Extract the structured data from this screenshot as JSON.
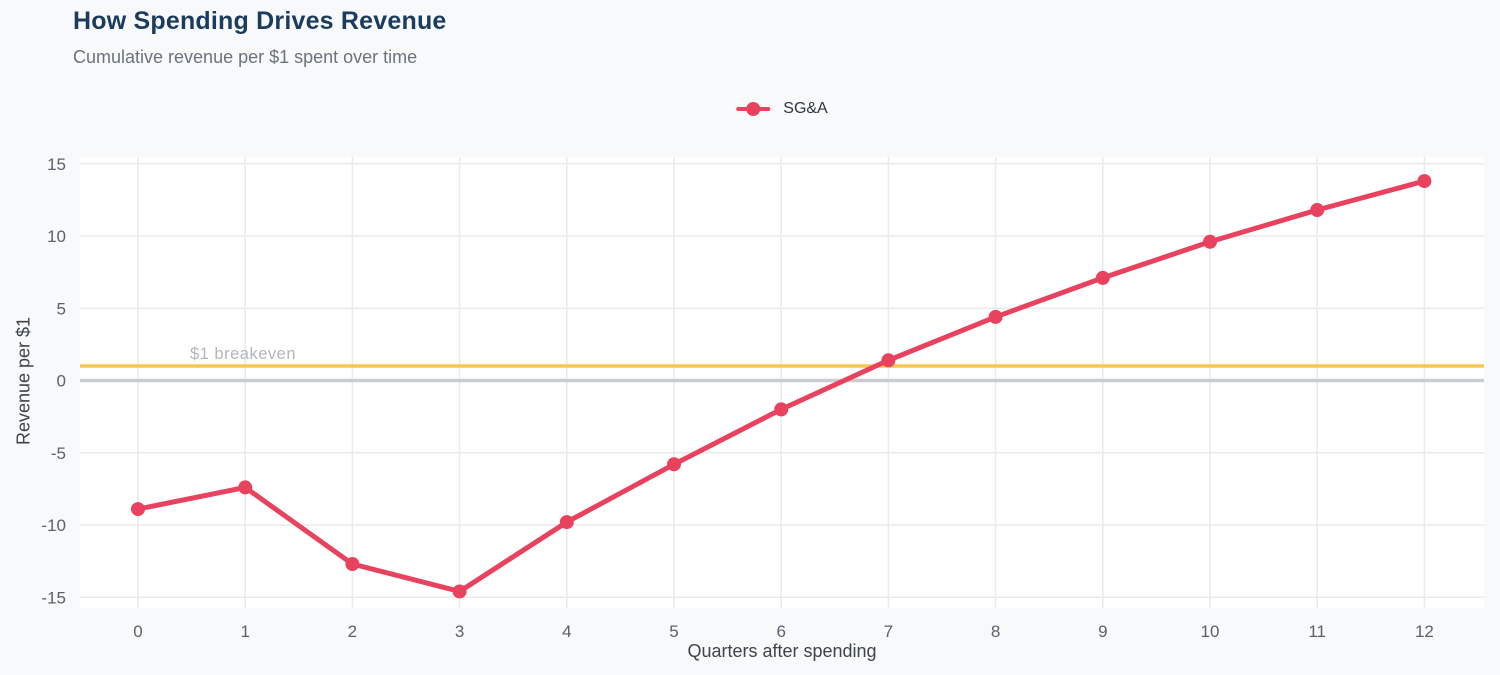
{
  "header": {
    "title": "How Spending Drives Revenue",
    "subtitle": "Cumulative revenue per $1 spent over time"
  },
  "legend": {
    "series_label": "SG&A"
  },
  "chart_data": {
    "type": "line",
    "title": "How Spending Drives Revenue",
    "subtitle": "Cumulative revenue per $1 spent over time",
    "xlabel": "Quarters after spending",
    "ylabel": "Revenue per $1",
    "x": [
      0,
      1,
      2,
      3,
      4,
      5,
      6,
      7,
      8,
      9,
      10,
      11,
      12
    ],
    "xticks": [
      0,
      1,
      2,
      3,
      4,
      5,
      6,
      7,
      8,
      9,
      10,
      11,
      12
    ],
    "yticks": [
      -15,
      -10,
      -5,
      0,
      5,
      10,
      15
    ],
    "xlim": [
      -0.54,
      12.56
    ],
    "ylim": [
      -15.7,
      15.5
    ],
    "grid": true,
    "legend_position": "top-center",
    "series": [
      {
        "name": "SG&A",
        "color": "#e8425f",
        "values": [
          -8.9,
          -7.4,
          -12.7,
          -14.6,
          -9.8,
          -5.8,
          -2.0,
          1.4,
          4.4,
          7.1,
          9.6,
          11.8,
          13.8
        ]
      }
    ],
    "reference_lines": [
      {
        "name": "zero-line",
        "value": 0,
        "color": "#c9cdd2",
        "label": ""
      },
      {
        "name": "breakeven-line",
        "value": 1,
        "color": "#f9c74f",
        "label": "$1 breakeven",
        "label_color": "#b2b7bc"
      }
    ]
  },
  "colors": {
    "background": "#f7f9fa",
    "plot_background": "#ffffff",
    "gridline": "#e8eaed",
    "title": "#1b3b5f",
    "subtitle": "#6b737c",
    "tick_label": "#5a626b",
    "axis_title": "#3d444c",
    "series": "#e8425f",
    "breakeven_line": "#f9c74f",
    "zero_line": "#c9cdd2"
  }
}
